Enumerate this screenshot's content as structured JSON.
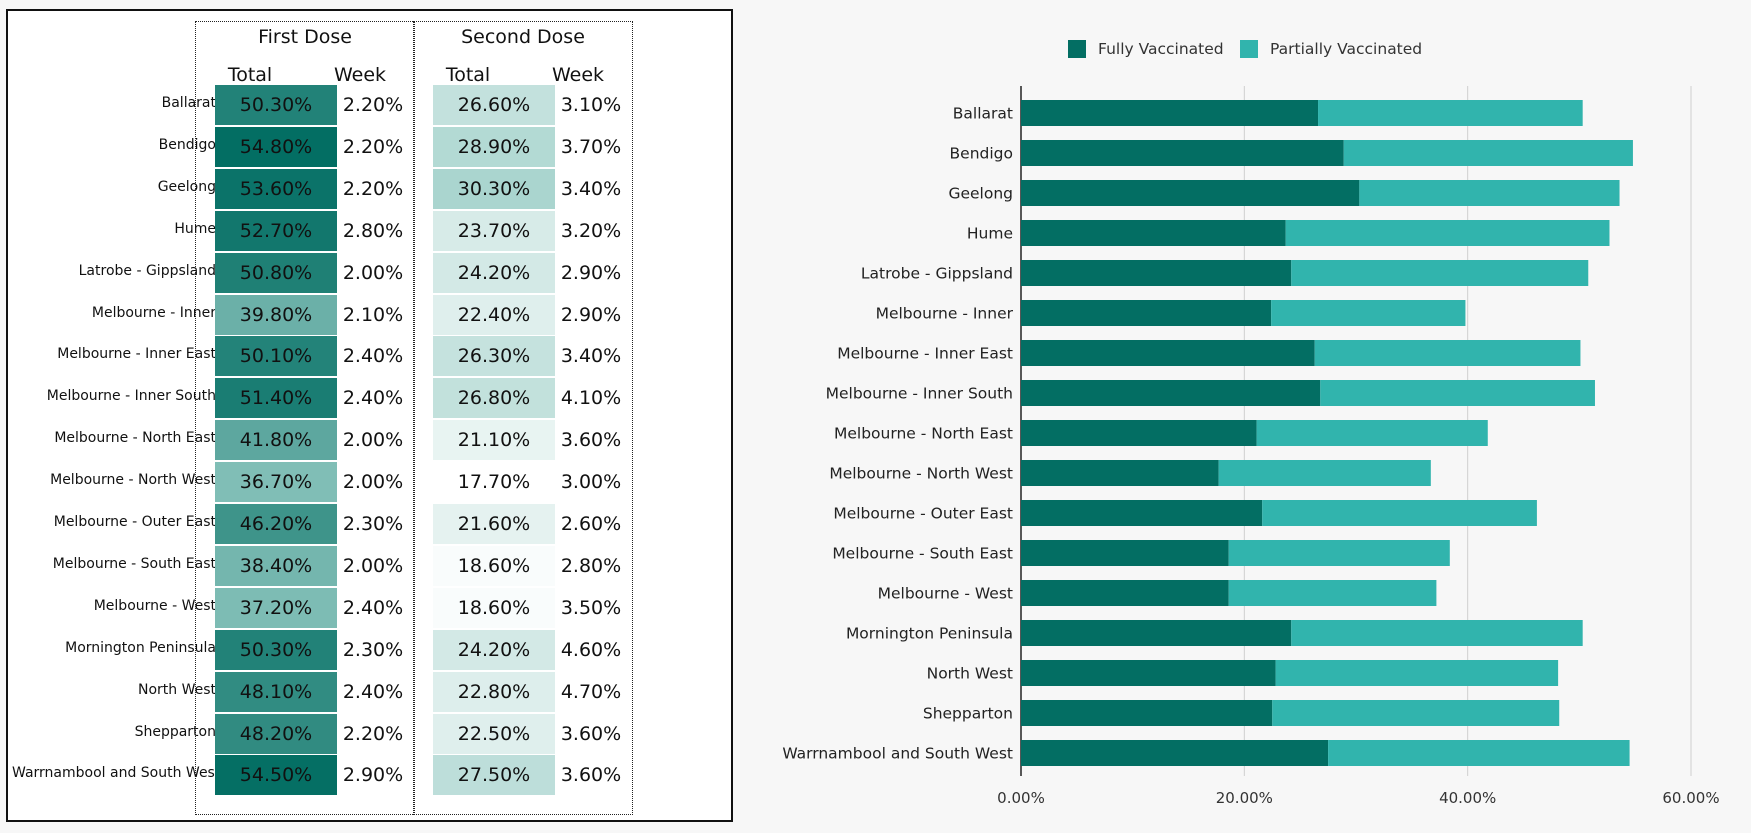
{
  "table": {
    "group_headers": [
      "First Dose",
      "Second Dose"
    ],
    "sub_headers": [
      "Total",
      "Week",
      "Total",
      "Week"
    ],
    "rows": [
      {
        "region": "Ballarat",
        "first_total": "50.30%",
        "first_week": "2.20%",
        "second_total": "26.60%",
        "second_week": "3.10%"
      },
      {
        "region": "Bendigo",
        "first_total": "54.80%",
        "first_week": "2.20%",
        "second_total": "28.90%",
        "second_week": "3.70%"
      },
      {
        "region": "Geelong",
        "first_total": "53.60%",
        "first_week": "2.20%",
        "second_total": "30.30%",
        "second_week": "3.40%"
      },
      {
        "region": "Hume",
        "first_total": "52.70%",
        "first_week": "2.80%",
        "second_total": "23.70%",
        "second_week": "3.20%"
      },
      {
        "region": "Latrobe - Gippsland",
        "first_total": "50.80%",
        "first_week": "2.00%",
        "second_total": "24.20%",
        "second_week": "2.90%"
      },
      {
        "region": "Melbourne - Inner",
        "first_total": "39.80%",
        "first_week": "2.10%",
        "second_total": "22.40%",
        "second_week": "2.90%"
      },
      {
        "region": "Melbourne - Inner East",
        "first_total": "50.10%",
        "first_week": "2.40%",
        "second_total": "26.30%",
        "second_week": "3.40%"
      },
      {
        "region": "Melbourne - Inner South",
        "first_total": "51.40%",
        "first_week": "2.40%",
        "second_total": "26.80%",
        "second_week": "4.10%"
      },
      {
        "region": "Melbourne - North East",
        "first_total": "41.80%",
        "first_week": "2.00%",
        "second_total": "21.10%",
        "second_week": "3.60%"
      },
      {
        "region": "Melbourne - North West",
        "first_total": "36.70%",
        "first_week": "2.00%",
        "second_total": "17.70%",
        "second_week": "3.00%"
      },
      {
        "region": "Melbourne - Outer East",
        "first_total": "46.20%",
        "first_week": "2.30%",
        "second_total": "21.60%",
        "second_week": "2.60%"
      },
      {
        "region": "Melbourne - South East",
        "first_total": "38.40%",
        "first_week": "2.00%",
        "second_total": "18.60%",
        "second_week": "2.80%"
      },
      {
        "region": "Melbourne - West",
        "first_total": "37.20%",
        "first_week": "2.40%",
        "second_total": "18.60%",
        "second_week": "3.50%"
      },
      {
        "region": "Mornington Peninsula",
        "first_total": "50.30%",
        "first_week": "2.30%",
        "second_total": "24.20%",
        "second_week": "4.60%"
      },
      {
        "region": "North West",
        "first_total": "48.10%",
        "first_week": "2.40%",
        "second_total": "22.80%",
        "second_week": "4.70%"
      },
      {
        "region": "Shepparton",
        "first_total": "48.20%",
        "first_week": "2.20%",
        "second_total": "22.50%",
        "second_week": "3.60%"
      },
      {
        "region": "Warrnambool and South West",
        "first_total": "54.50%",
        "first_week": "2.90%",
        "second_total": "27.50%",
        "second_week": "3.60%"
      }
    ]
  },
  "colors": {
    "fully": "#036e63",
    "partially": "#31b4ad",
    "grid": "#cfcfcf"
  },
  "chart_data": {
    "type": "bar",
    "orientation": "horizontal",
    "stacked": true,
    "categories": [
      "Ballarat",
      "Bendigo",
      "Geelong",
      "Hume",
      "Latrobe - Gippsland",
      "Melbourne - Inner",
      "Melbourne - Inner East",
      "Melbourne - Inner South",
      "Melbourne - North East",
      "Melbourne - North West",
      "Melbourne - Outer East",
      "Melbourne - South East",
      "Melbourne - West",
      "Mornington Peninsula",
      "North West",
      "Shepparton",
      "Warrnambool and South West"
    ],
    "series": [
      {
        "name": "Fully Vaccinated",
        "values": [
          26.6,
          28.9,
          30.3,
          23.7,
          24.2,
          22.4,
          26.3,
          26.8,
          21.1,
          17.7,
          21.6,
          18.6,
          18.6,
          24.2,
          22.8,
          22.5,
          27.5
        ]
      },
      {
        "name": "Partially Vaccinated",
        "values": [
          23.7,
          25.9,
          23.3,
          29.0,
          26.6,
          17.4,
          23.8,
          24.6,
          20.7,
          19.0,
          24.6,
          19.8,
          18.6,
          26.1,
          25.3,
          25.7,
          27.0
        ]
      }
    ],
    "xlim": [
      0,
      60
    ],
    "xticks": [
      "0.00%",
      "20.00%",
      "40.00%",
      "60.00%"
    ],
    "legend_position": "top",
    "grid": true
  }
}
